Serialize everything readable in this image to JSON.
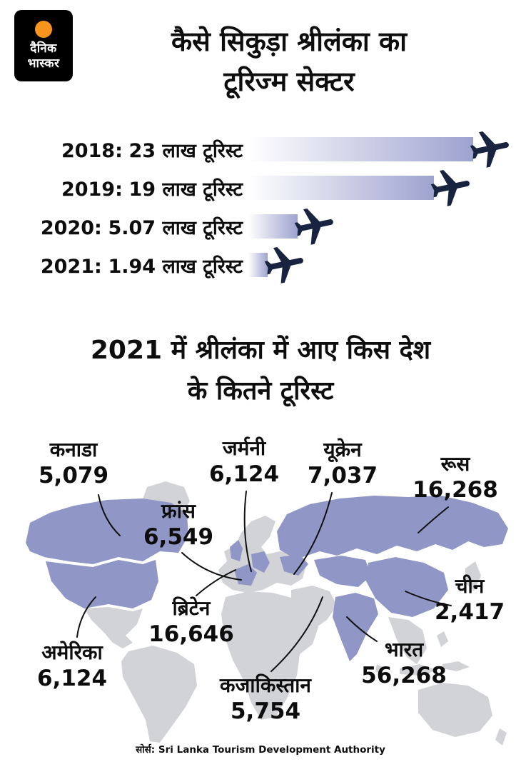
{
  "logo": {
    "line1": "दैनिक",
    "line2": "भास्कर"
  },
  "section1": {
    "title_line1": "कैसे सिकुड़ा श्रीलंका का",
    "title_line2": "टूरिज्म सेक्टर"
  },
  "section2": {
    "title_line1": "2021 में श्रीलंका में आए किस देश",
    "title_line2": "के कितने टूरिस्ट"
  },
  "source": {
    "prefix": "सोर्स:",
    "text": "Sri Lanka Tourism Development Authority"
  },
  "colors": {
    "highlight_purple": "#9097c7",
    "bar_gradient_end": "#9ea3cf",
    "plane_navy": "#17233f",
    "land_grey": "#d2d3d6",
    "logo_orange": "#f7941d"
  },
  "chart_data": [
    {
      "type": "bar",
      "title": "कैसे सिकुड़ा श्रीलंका का टूरिज्म सेक्टर",
      "categories": [
        "2018",
        "2019",
        "2020",
        "2021"
      ],
      "values": [
        23,
        19,
        5.07,
        1.94
      ],
      "unit": "लाख टूरिस्ट",
      "xlim": [
        0,
        23
      ],
      "rows": [
        {
          "year": "2018:",
          "value": 23,
          "value_label": "23 लाख टूरिस्ट"
        },
        {
          "year": "2019:",
          "value": 19,
          "value_label": "19 लाख टूरिस्ट"
        },
        {
          "year": "2020:",
          "value": 5.07,
          "value_label": "5.07 लाख टूरिस्ट"
        },
        {
          "year": "2021:",
          "value": 1.94,
          "value_label": "1.94 लाख टूरिस्ट"
        }
      ]
    },
    {
      "type": "map",
      "title": "2021 में श्रीलंका में आए किस देश के कितने टूरिस्ट",
      "points": [
        {
          "country": "कनाडा",
          "value": "5,079"
        },
        {
          "country": "जर्मनी",
          "value": "6,124"
        },
        {
          "country": "यूक्रेन",
          "value": "7,037"
        },
        {
          "country": "रूस",
          "value": "16,268"
        },
        {
          "country": "फ्रांस",
          "value": "6,549"
        },
        {
          "country": "चीन",
          "value": "2,417"
        },
        {
          "country": "ब्रिटेन",
          "value": "16,646"
        },
        {
          "country": "भारत",
          "value": "56,268"
        },
        {
          "country": "अमेरिका",
          "value": "6,124"
        },
        {
          "country": "कजाकिस्तान",
          "value": "5,754"
        }
      ]
    }
  ]
}
